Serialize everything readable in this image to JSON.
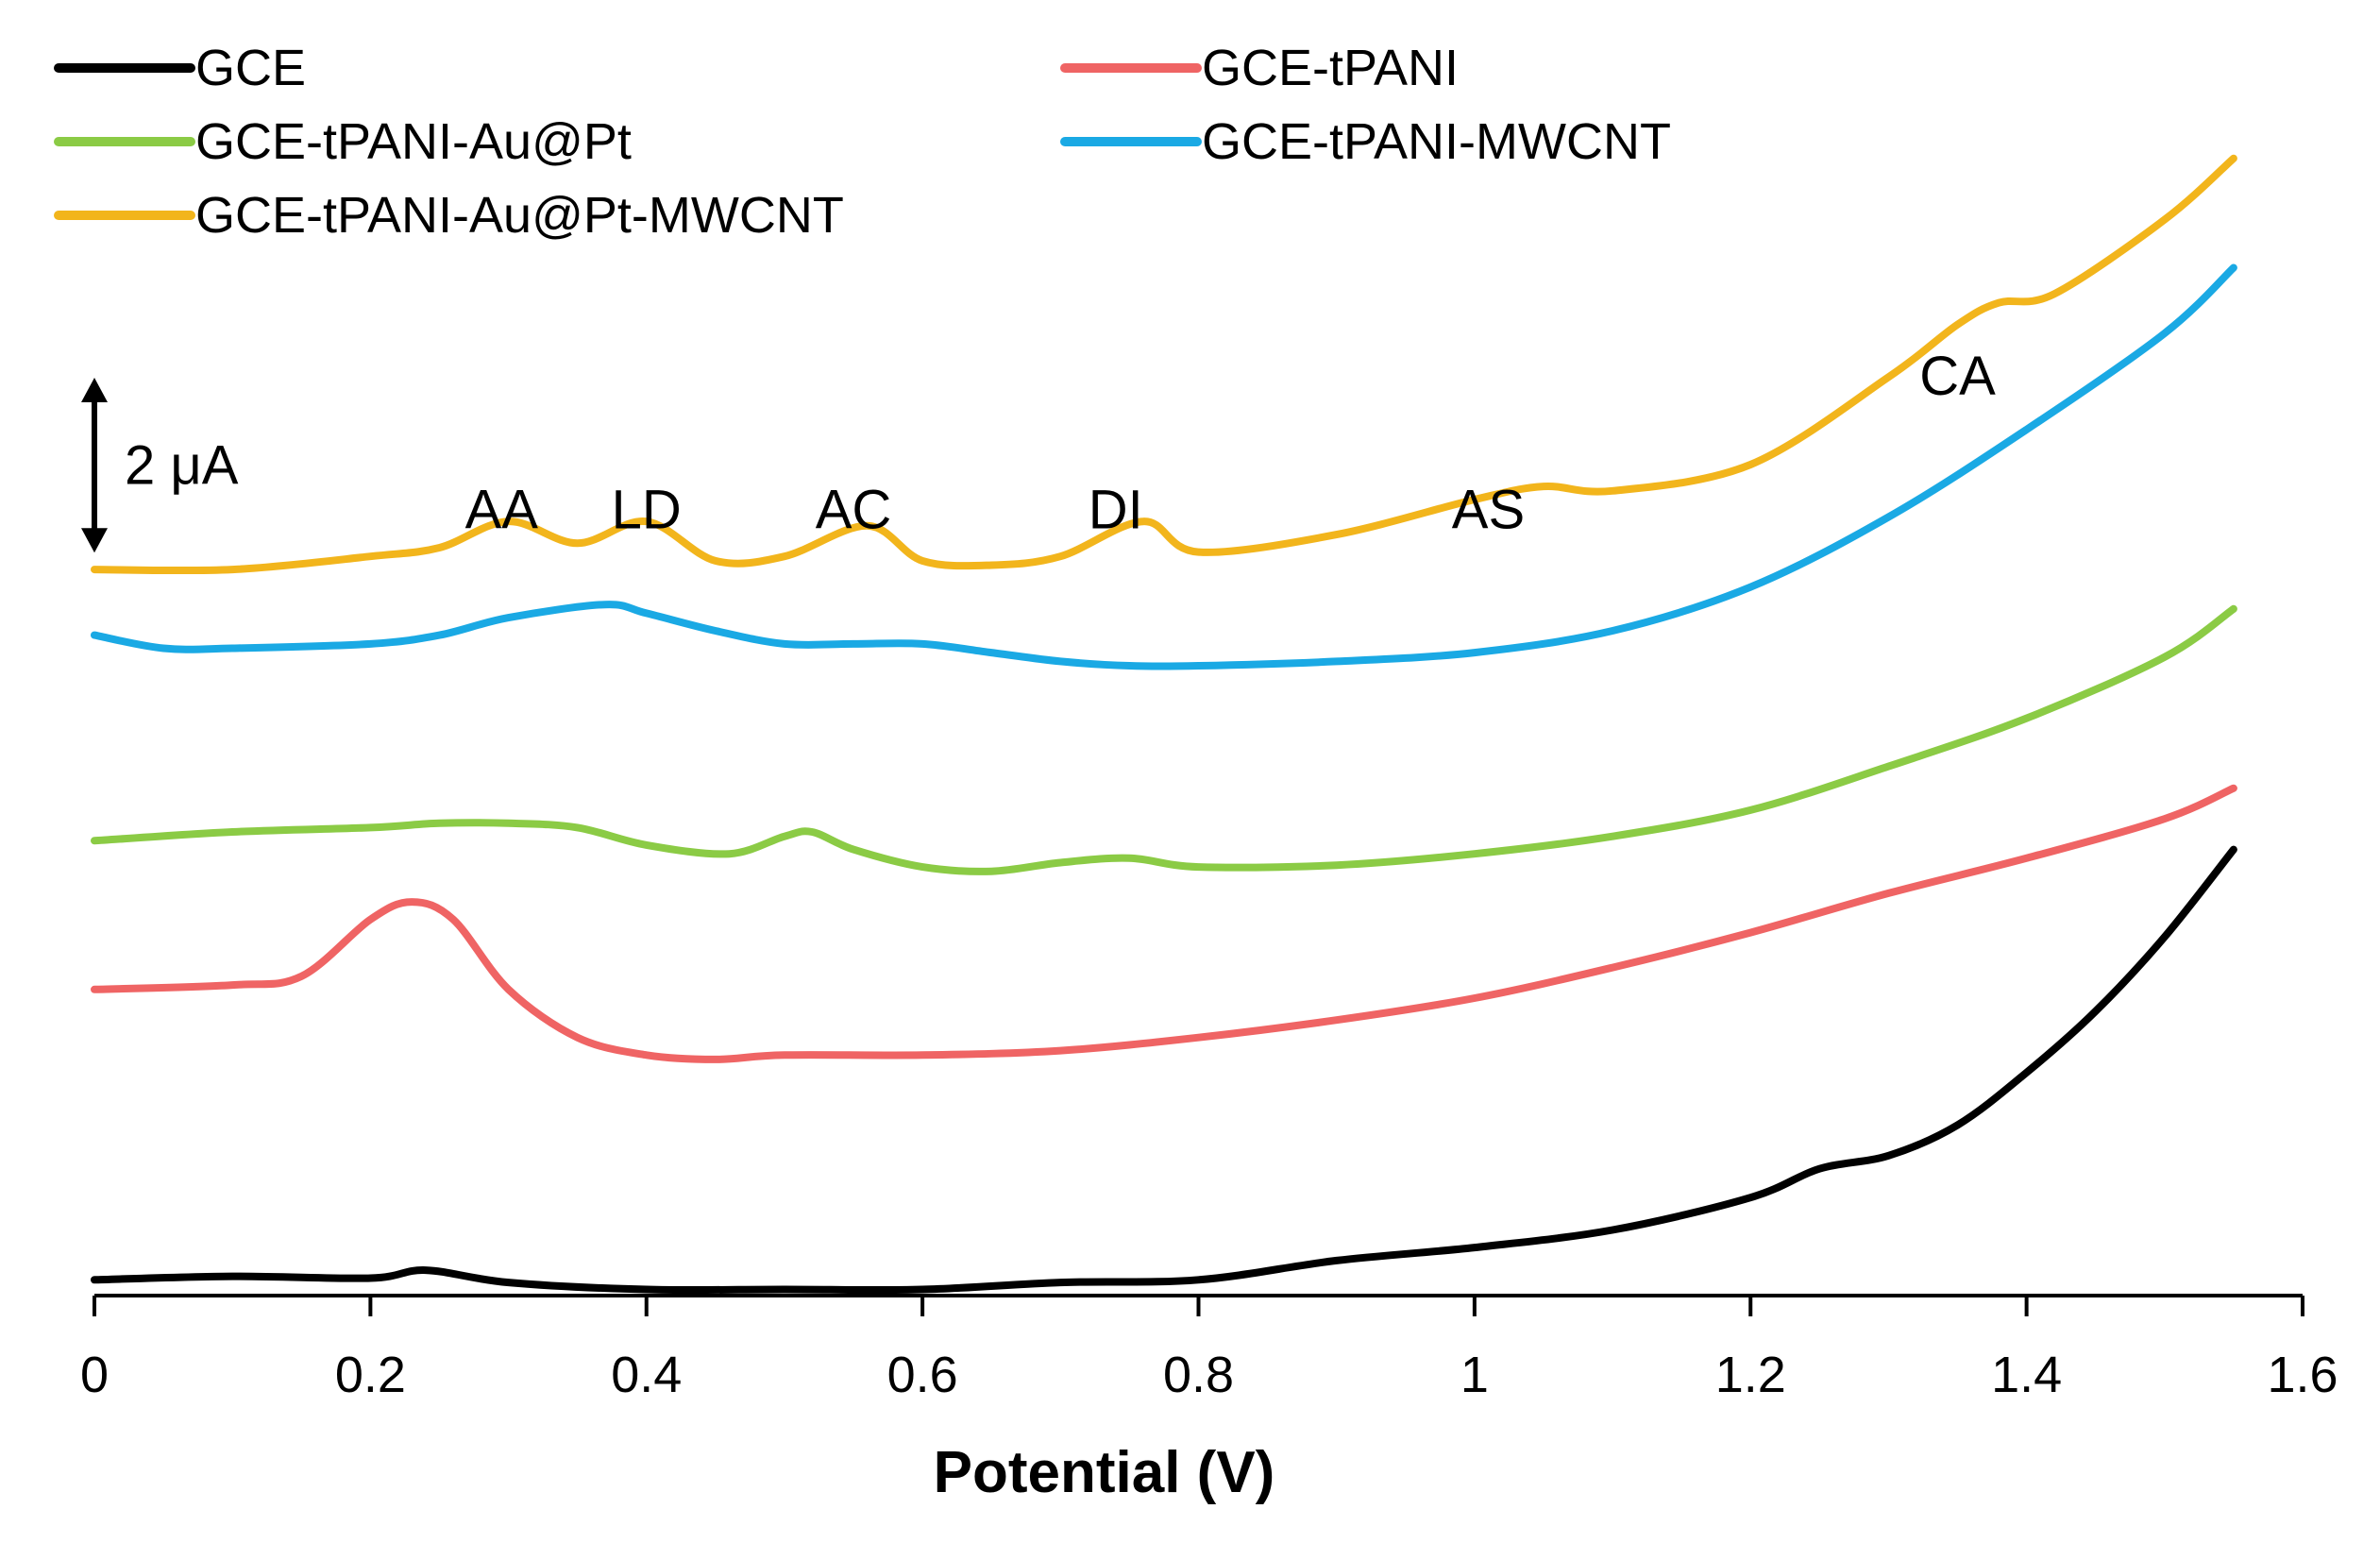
{
  "chart_data": {
    "type": "line",
    "title": "",
    "xlabel": "Potential (V)",
    "ylabel": "",
    "xlim": [
      0,
      1.6
    ],
    "xticks": [
      0,
      0.2,
      0.4,
      0.6,
      0.8,
      1,
      1.2,
      1.4,
      1.6
    ],
    "xtick_labels": [
      "0",
      "0.2",
      "0.4",
      "0.6",
      "0.8",
      "1",
      "1.2",
      "1.4",
      "1.6"
    ],
    "ylim": [
      0,
      12.9
    ],
    "y_axis_visible": false,
    "grid": false,
    "legend_placement": "top",
    "scale_bar": {
      "label": "2 μA",
      "value_uA": 2
    },
    "annotations": [
      {
        "text": "AA",
        "x": 0.295,
        "y": 8.77
      },
      {
        "text": "LD",
        "x": 0.4,
        "y": 8.77
      },
      {
        "text": "AC",
        "x": 0.55,
        "y": 8.77
      },
      {
        "text": "DI",
        "x": 0.74,
        "y": 8.77
      },
      {
        "text": "AS",
        "x": 1.01,
        "y": 8.77
      },
      {
        "text": "CA",
        "x": 1.35,
        "y": 10.3
      }
    ],
    "series": [
      {
        "name": "GCE",
        "color": "#000000",
        "legend_label": "GCE",
        "x": [
          0,
          0.1,
          0.2,
          0.24,
          0.3,
          0.4,
          0.5,
          0.6,
          0.7,
          0.8,
          0.9,
          1.0,
          1.1,
          1.2,
          1.25,
          1.3,
          1.35,
          1.4,
          1.45,
          1.5,
          1.55
        ],
        "y": [
          0.18,
          0.22,
          0.2,
          0.29,
          0.15,
          0.07,
          0.07,
          0.07,
          0.15,
          0.18,
          0.4,
          0.55,
          0.75,
          1.12,
          1.45,
          1.6,
          1.95,
          2.55,
          3.25,
          4.1,
          5.1
        ]
      },
      {
        "name": "GCE-tPANI",
        "color": "#ef6464",
        "legend_label": "GCE-tPANI",
        "x": [
          0,
          0.1,
          0.15,
          0.2,
          0.23,
          0.26,
          0.3,
          0.35,
          0.4,
          0.45,
          0.5,
          0.6,
          0.7,
          0.8,
          0.9,
          1.0,
          1.1,
          1.2,
          1.3,
          1.4,
          1.5,
          1.55
        ],
        "y": [
          3.5,
          3.55,
          3.65,
          4.3,
          4.5,
          4.3,
          3.5,
          2.95,
          2.75,
          2.7,
          2.75,
          2.75,
          2.8,
          2.95,
          3.15,
          3.4,
          3.75,
          4.15,
          4.6,
          5.0,
          5.45,
          5.8
        ]
      },
      {
        "name": "GCE-tPANI-Au@Pt",
        "color": "#8bcb45",
        "legend_label": "GCE-tPANI-Au@Pt",
        "x": [
          0,
          0.1,
          0.2,
          0.25,
          0.3,
          0.35,
          0.4,
          0.46,
          0.5,
          0.52,
          0.55,
          0.6,
          0.65,
          0.7,
          0.75,
          0.8,
          0.9,
          1.0,
          1.1,
          1.2,
          1.3,
          1.4,
          1.5,
          1.55
        ],
        "y": [
          5.2,
          5.3,
          5.35,
          5.4,
          5.4,
          5.35,
          5.15,
          5.05,
          5.25,
          5.3,
          5.1,
          4.9,
          4.85,
          4.95,
          5.0,
          4.9,
          4.92,
          5.05,
          5.25,
          5.55,
          6.05,
          6.6,
          7.3,
          7.85
        ]
      },
      {
        "name": "GCE-tPANI-MWCNT",
        "color": "#1aa9e4",
        "legend_label": "GCE-tPANI-MWCNT",
        "x": [
          0,
          0.05,
          0.1,
          0.2,
          0.25,
          0.3,
          0.37,
          0.4,
          0.45,
          0.5,
          0.55,
          0.6,
          0.65,
          0.7,
          0.75,
          0.8,
          0.9,
          1.0,
          1.1,
          1.2,
          1.3,
          1.4,
          1.5,
          1.55
        ],
        "y": [
          7.55,
          7.4,
          7.4,
          7.45,
          7.55,
          7.75,
          7.9,
          7.8,
          7.6,
          7.45,
          7.45,
          7.45,
          7.35,
          7.25,
          7.2,
          7.2,
          7.25,
          7.35,
          7.6,
          8.1,
          8.9,
          9.9,
          11.0,
          11.75
        ]
      },
      {
        "name": "GCE-tPANI-Au@Pt-MWCNT",
        "color": "#f2b51c",
        "legend_label": "GCE-tPANI-Au@Pt-MWCNT",
        "x": [
          0,
          0.1,
          0.2,
          0.25,
          0.3,
          0.35,
          0.4,
          0.45,
          0.5,
          0.56,
          0.6,
          0.65,
          0.7,
          0.76,
          0.8,
          0.9,
          1.0,
          1.05,
          1.1,
          1.2,
          1.3,
          1.35,
          1.38,
          1.42,
          1.5,
          1.55
        ],
        "y": [
          8.3,
          8.3,
          8.45,
          8.55,
          8.85,
          8.6,
          8.85,
          8.4,
          8.45,
          8.8,
          8.4,
          8.35,
          8.45,
          8.85,
          8.5,
          8.7,
          9.1,
          9.25,
          9.2,
          9.5,
          10.5,
          11.1,
          11.35,
          11.45,
          12.3,
          13.0
        ]
      }
    ]
  }
}
